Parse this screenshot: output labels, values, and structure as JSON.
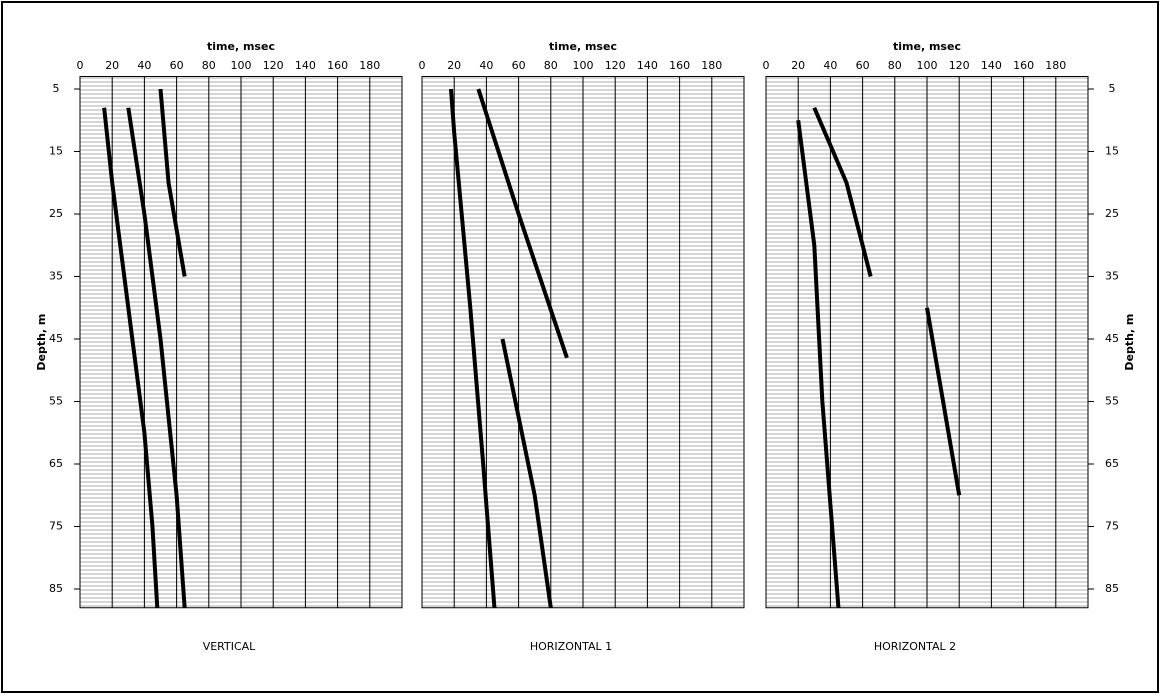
{
  "chart_data": [
    {
      "type": "wiggle",
      "title": "VERTICAL",
      "xlabel": "time, msec",
      "ylabel": "Depth, m",
      "xlim": [
        0,
        200
      ],
      "xticks": [
        0,
        20,
        40,
        60,
        80,
        100,
        120,
        140,
        160,
        180
      ],
      "ylim": [
        3,
        88
      ],
      "yticks": [
        5,
        15,
        25,
        35,
        45,
        55,
        65,
        75,
        85
      ],
      "events": [
        {
          "x": [
            15,
            20,
            30,
            40,
            45,
            48
          ],
          "y": [
            8,
            20,
            40,
            60,
            75,
            88
          ]
        },
        {
          "x": [
            30,
            40,
            50,
            60,
            65
          ],
          "y": [
            8,
            25,
            45,
            70,
            88
          ]
        },
        {
          "x": [
            50,
            55,
            65
          ],
          "y": [
            5,
            20,
            35
          ]
        }
      ]
    },
    {
      "type": "wiggle",
      "title": "HORIZONTAL 1",
      "xlabel": "time, msec",
      "xlim": [
        0,
        200
      ],
      "xticks": [
        0,
        20,
        40,
        60,
        80,
        100,
        120,
        140,
        160,
        180
      ],
      "ylim": [
        3,
        88
      ],
      "yticks": [
        5,
        15,
        25,
        35,
        45,
        55,
        65,
        75,
        85
      ],
      "events": [
        {
          "x": [
            18,
            20,
            30,
            38,
            45
          ],
          "y": [
            5,
            12,
            40,
            65,
            88
          ]
        },
        {
          "x": [
            35,
            60,
            90
          ],
          "y": [
            5,
            25,
            48
          ]
        },
        {
          "x": [
            50,
            70,
            80
          ],
          "y": [
            45,
            70,
            88
          ]
        }
      ]
    },
    {
      "type": "wiggle",
      "title": "HORIZONTAL 2",
      "xlabel": "time, msec",
      "ylabel": "Depth, m",
      "xlim": [
        0,
        200
      ],
      "xticks": [
        0,
        20,
        40,
        60,
        80,
        100,
        120,
        140,
        160,
        180
      ],
      "ylim": [
        3,
        88
      ],
      "yticks": [
        5,
        15,
        25,
        35,
        45,
        55,
        65,
        75,
        85
      ],
      "events": [
        {
          "x": [
            20,
            30,
            35,
            45
          ],
          "y": [
            10,
            30,
            55,
            88
          ]
        },
        {
          "x": [
            30,
            50,
            65
          ],
          "y": [
            8,
            20,
            35
          ]
        },
        {
          "x": [
            100,
            110,
            120
          ],
          "y": [
            40,
            55,
            70
          ]
        }
      ]
    }
  ]
}
